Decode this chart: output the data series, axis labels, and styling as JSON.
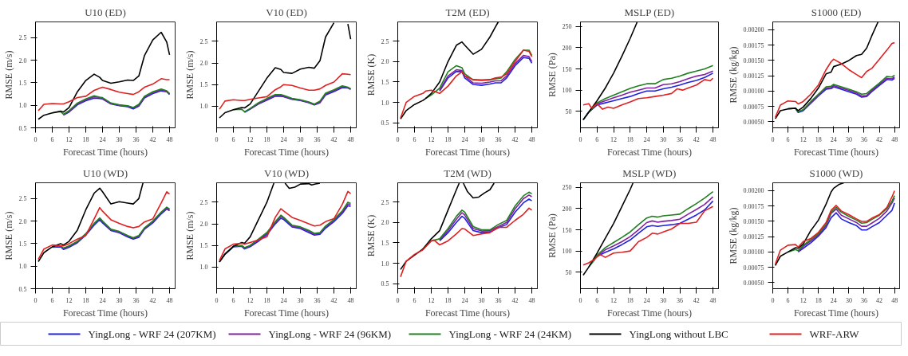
{
  "chart_data": [
    {
      "type": "line",
      "title": "U10 (ED)",
      "xlabel": "Forecast Time (hours)",
      "ylabel": "RMSE (m/s)",
      "legend": "bottom",
      "xlim": [
        0,
        50
      ],
      "ylim": [
        0.5,
        2.85
      ],
      "xticks": [
        0,
        6,
        12,
        18,
        24,
        30,
        36,
        42,
        48
      ],
      "yticks": [
        {
          "value": 0.5,
          "label": "0.5"
        },
        {
          "value": 1.0,
          "label": "1.0"
        },
        {
          "value": 1.5,
          "label": "1.5"
        },
        {
          "value": 2.0,
          "label": "2.0"
        },
        {
          "value": 2.5,
          "label": "2.5"
        }
      ],
      "x": [
        1,
        3,
        6,
        9,
        10,
        12,
        15,
        18,
        21,
        23,
        24,
        27,
        30,
        33,
        35,
        37,
        39,
        42,
        45,
        47,
        48
      ],
      "series": [
        {
          "name": "YingLong - WRF 24 (207KM)",
          "color": "#2020e0",
          "values": [
            null,
            null,
            null,
            null,
            0.78,
            0.85,
            1.01,
            1.1,
            1.16,
            1.15,
            1.14,
            1.03,
            0.99,
            0.97,
            0.92,
            0.98,
            1.16,
            1.26,
            1.32,
            1.3,
            1.24
          ]
        },
        {
          "name": "YingLong - WRF 24 (96KM)",
          "color": "#8020a0",
          "values": [
            null,
            null,
            null,
            null,
            0.79,
            0.87,
            1.03,
            1.12,
            1.19,
            1.17,
            1.15,
            1.04,
            1.0,
            0.98,
            0.94,
            1.0,
            1.18,
            1.28,
            1.34,
            1.31,
            1.25
          ]
        },
        {
          "name": "YingLong - WRF 24 (24KM)",
          "color": "#208020",
          "values": [
            null,
            null,
            0.83,
            0.86,
            0.8,
            0.88,
            1.05,
            1.14,
            1.21,
            1.18,
            1.17,
            1.05,
            1.01,
            0.99,
            0.95,
            1.02,
            1.2,
            1.3,
            1.36,
            1.32,
            1.26
          ]
        },
        {
          "name": "YingLong without LBC",
          "color": "#000000",
          "values": [
            0.69,
            0.78,
            0.83,
            0.87,
            0.85,
            0.95,
            1.3,
            1.55,
            1.69,
            1.62,
            1.55,
            1.49,
            1.52,
            1.56,
            1.55,
            1.65,
            2.1,
            2.45,
            2.62,
            2.4,
            2.12
          ]
        },
        {
          "name": "WRF-ARW",
          "color": "#e02020",
          "values": [
            0.88,
            1.02,
            1.04,
            1.03,
            1.03,
            1.08,
            1.17,
            1.2,
            1.33,
            1.38,
            1.4,
            1.35,
            1.29,
            1.26,
            1.24,
            1.3,
            1.4,
            1.47,
            1.59,
            1.57,
            1.57
          ]
        }
      ]
    },
    {
      "type": "line",
      "title": "V10 (ED)",
      "xlabel": "Forecast Time (hours)",
      "ylabel": "RMSE (m/s)",
      "xlim": [
        0,
        50
      ],
      "ylim": [
        0.5,
        2.95
      ],
      "xticks": [
        0,
        6,
        12,
        18,
        24,
        30,
        36,
        42,
        48
      ],
      "yticks": [
        {
          "value": 1.0,
          "label": "1.0"
        },
        {
          "value": 1.5,
          "label": "1.5"
        },
        {
          "value": 2.0,
          "label": "2.0"
        },
        {
          "value": 2.5,
          "label": "2.5"
        }
      ],
      "x": [
        1,
        3,
        6,
        9,
        10,
        12,
        15,
        18,
        21,
        23,
        24,
        27,
        30,
        33,
        35,
        37,
        39,
        42,
        45,
        47,
        48
      ],
      "series": [
        {
          "color": "#2020e0",
          "values": [
            null,
            null,
            null,
            null,
            0.86,
            0.93,
            1.05,
            1.14,
            1.23,
            1.23,
            1.22,
            1.16,
            1.13,
            1.08,
            1.03,
            1.08,
            1.26,
            1.34,
            1.43,
            1.42,
            1.39
          ]
        },
        {
          "color": "#8020a0",
          "values": [
            null,
            null,
            null,
            null,
            null,
            0.94,
            1.06,
            1.16,
            1.25,
            1.25,
            1.23,
            1.17,
            1.14,
            1.09,
            1.04,
            1.1,
            1.28,
            1.36,
            1.45,
            1.43,
            1.4
          ]
        },
        {
          "color": "#208020",
          "values": [
            null,
            null,
            0.92,
            0.93,
            0.87,
            0.95,
            1.08,
            1.18,
            1.27,
            1.27,
            1.25,
            1.18,
            1.15,
            1.1,
            1.05,
            1.12,
            1.3,
            1.38,
            1.47,
            1.44,
            1.4
          ]
        },
        {
          "color": "#000000",
          "values": [
            0.73,
            0.85,
            0.92,
            0.97,
            0.96,
            1.05,
            1.35,
            1.65,
            1.89,
            1.85,
            1.78,
            1.76,
            1.86,
            1.9,
            1.88,
            2.05,
            2.6,
            2.93,
            null,
            2.9,
            2.55
          ]
        },
        {
          "color": "#e02020",
          "values": [
            0.93,
            1.12,
            1.15,
            1.13,
            1.13,
            1.16,
            1.19,
            1.22,
            1.38,
            1.45,
            1.5,
            1.48,
            1.42,
            1.37,
            1.37,
            1.4,
            1.48,
            1.56,
            1.75,
            1.74,
            1.73
          ]
        }
      ]
    },
    {
      "type": "line",
      "title": "T2M (ED)",
      "xlabel": "Forecast Time (hours)",
      "ylabel": "RMSE (K)",
      "xlim": [
        0,
        50
      ],
      "ylim": [
        0.38,
        2.97
      ],
      "xticks": [
        0,
        6,
        12,
        18,
        24,
        30,
        36,
        42,
        48
      ],
      "yticks": [
        {
          "value": 0.5,
          "label": "0.5"
        },
        {
          "value": 1.0,
          "label": "1.0"
        },
        {
          "value": 1.5,
          "label": "1.5"
        },
        {
          "value": 2.0,
          "label": "2.0"
        },
        {
          "value": 2.5,
          "label": "2.5"
        }
      ],
      "x": [
        1,
        3,
        6,
        9,
        10,
        12,
        15,
        18,
        21,
        23,
        24,
        27,
        30,
        33,
        35,
        37,
        39,
        42,
        45,
        47,
        48
      ],
      "series": [
        {
          "color": "#2020e0",
          "values": [
            null,
            null,
            null,
            null,
            null,
            null,
            1.28,
            1.6,
            1.76,
            1.75,
            1.6,
            1.44,
            1.42,
            1.45,
            1.48,
            1.48,
            1.6,
            1.9,
            2.1,
            2.08,
            1.96
          ]
        },
        {
          "color": "#8020a0",
          "values": [
            null,
            null,
            null,
            null,
            null,
            null,
            1.3,
            1.65,
            1.8,
            1.78,
            1.65,
            1.48,
            1.47,
            1.5,
            1.53,
            1.53,
            1.65,
            1.95,
            2.15,
            2.12,
            2.0
          ]
        },
        {
          "color": "#208020",
          "values": [
            null,
            null,
            null,
            null,
            1.1,
            1.18,
            1.35,
            1.75,
            1.9,
            1.85,
            1.7,
            1.55,
            1.54,
            1.55,
            1.58,
            1.6,
            1.75,
            2.05,
            2.28,
            2.28,
            2.15
          ]
        },
        {
          "color": "#000000",
          "x": [
            1,
            3,
            6,
            9,
            10,
            12,
            15,
            18,
            21,
            23,
            24,
            27,
            30,
            33,
            35,
            36
          ],
          "values": [
            0.6,
            0.8,
            0.95,
            1.05,
            1.1,
            1.22,
            1.5,
            2.0,
            2.4,
            2.48,
            2.4,
            2.18,
            2.3,
            2.6,
            2.85,
            2.97
          ]
        },
        {
          "color": "#e02020",
          "values": [
            0.62,
            1.0,
            1.15,
            1.22,
            1.28,
            1.3,
            1.22,
            1.4,
            1.65,
            1.75,
            1.65,
            1.56,
            1.55,
            1.56,
            1.6,
            1.62,
            1.7,
            2.0,
            2.28,
            2.25,
            2.12
          ]
        }
      ]
    },
    {
      "type": "line",
      "title": "MSLP (ED)",
      "xlabel": "Forecast Time (hours)",
      "ylabel": "RMSE (Pa)",
      "xlim": [
        0,
        50
      ],
      "ylim": [
        11,
        261
      ],
      "xticks": [
        0,
        6,
        12,
        18,
        24,
        30,
        36,
        42,
        48
      ],
      "yticks": [
        50,
        100,
        150,
        200,
        250
      ],
      "x": [
        1,
        3,
        6,
        9,
        12,
        15,
        18,
        21,
        24,
        27,
        30,
        33,
        36,
        39,
        42,
        45,
        48
      ],
      "series": [
        {
          "color": "#2020e0",
          "values": [
            30,
            48,
            65,
            70,
            75,
            80,
            85,
            92,
            98,
            98,
            103,
            107,
            112,
            118,
            123,
            130,
            140
          ]
        },
        {
          "color": "#8020a0",
          "values": [
            30,
            48,
            68,
            75,
            82,
            88,
            95,
            100,
            105,
            105,
            113,
            115,
            120,
            127,
            133,
            137,
            145
          ]
        },
        {
          "color": "#208020",
          "values": [
            30,
            48,
            70,
            80,
            88,
            96,
            104,
            110,
            115,
            115,
            125,
            128,
            133,
            140,
            145,
            150,
            158
          ]
        },
        {
          "color": "#000000",
          "x": [
            1,
            3,
            6,
            9,
            12,
            15,
            18,
            20.5
          ],
          "values": [
            30,
            48,
            75,
            105,
            140,
            180,
            222,
            260
          ]
        },
        {
          "color": "#e02020",
          "x": [
            1,
            3,
            4,
            6,
            8,
            10,
            12,
            15,
            18,
            21,
            24,
            27,
            30,
            33,
            35,
            37,
            39,
            42,
            45,
            47,
            48
          ],
          "values": [
            65,
            68,
            58,
            68,
            55,
            60,
            57,
            65,
            72,
            80,
            82,
            85,
            88,
            92,
            103,
            100,
            105,
            112,
            125,
            122,
            128
          ]
        }
      ]
    },
    {
      "type": "line",
      "title": "S1000 (ED)",
      "xlabel": "Forecast Time (hours)",
      "ylabel": "RMSE (kg/kg)",
      "xlim": [
        0,
        50
      ],
      "ylim": [
        0.0004,
        0.00213
      ],
      "xticks": [
        0,
        6,
        12,
        18,
        24,
        30,
        36,
        42,
        48
      ],
      "yticks": [
        {
          "value": 0.0005,
          "label": "0.00050"
        },
        {
          "value": 0.00075,
          "label": "0.00075"
        },
        {
          "value": 0.001,
          "label": "0.00100"
        },
        {
          "value": 0.00125,
          "label": "0.00125"
        },
        {
          "value": 0.0015,
          "label": "0.00150"
        },
        {
          "value": 0.00175,
          "label": "0.00175"
        },
        {
          "value": 0.002,
          "label": "0.00200"
        }
      ],
      "x": [
        1,
        3,
        6,
        9,
        10,
        12,
        15,
        18,
        21,
        23,
        24,
        27,
        30,
        33,
        35,
        37,
        39,
        42,
        45,
        47,
        48
      ],
      "series": [
        {
          "color": "#2020e0",
          "values": [
            null,
            null,
            null,
            0.00071,
            0.00065,
            0.00068,
            0.0008,
            0.00092,
            0.00103,
            0.00104,
            0.00107,
            0.00103,
            0.00099,
            0.00095,
            0.0009,
            0.00091,
            0.00099,
            0.00109,
            0.00119,
            0.00118,
            0.00121
          ]
        },
        {
          "color": "#8020a0",
          "values": [
            null,
            null,
            null,
            null,
            null,
            0.00069,
            0.00081,
            0.00093,
            0.00105,
            0.00106,
            0.00109,
            0.00105,
            0.00101,
            0.00097,
            0.00092,
            0.00093,
            0.00101,
            0.00111,
            0.00121,
            0.0012,
            0.00123
          ]
        },
        {
          "color": "#208020",
          "values": [
            null,
            null,
            0.00071,
            0.00072,
            0.00066,
            0.0007,
            0.00083,
            0.00095,
            0.00107,
            0.00108,
            0.00111,
            0.00107,
            0.00103,
            0.00099,
            0.00095,
            0.00096,
            0.00103,
            0.00113,
            0.00124,
            0.00123,
            0.00126
          ]
        },
        {
          "color": "#000000",
          "x": [
            1,
            3,
            6,
            9,
            10,
            12,
            15,
            18,
            21,
            23,
            24,
            27,
            30,
            33,
            35,
            37,
            39,
            41.5
          ],
          "values": [
            0.00055,
            0.00068,
            0.00071,
            0.00072,
            0.00068,
            0.00074,
            0.00088,
            0.00105,
            0.00128,
            0.00131,
            0.0014,
            0.00144,
            0.0015,
            0.00158,
            0.0016,
            0.0017,
            0.0019,
            0.00213
          ]
        },
        {
          "color": "#e02020",
          "values": [
            0.00057,
            0.00077,
            0.00084,
            0.00083,
            0.00079,
            0.00083,
            0.00095,
            0.0011,
            0.00135,
            0.00148,
            0.00152,
            0.00145,
            0.00135,
            0.00127,
            0.00122,
            0.00132,
            0.00137,
            0.00152,
            0.00167,
            0.00178,
            0.00179
          ]
        }
      ]
    },
    {
      "type": "line",
      "title": "U10 (WD)",
      "xlabel": "Forecast Time (hours)",
      "ylabel": "RMSE (m/s)",
      "xlim": [
        0,
        50
      ],
      "ylim": [
        0.5,
        2.85
      ],
      "xticks": [
        0,
        6,
        12,
        18,
        24,
        30,
        36,
        42,
        48
      ],
      "yticks": [
        {
          "value": 0.5,
          "label": "0.5"
        },
        {
          "value": 1.0,
          "label": "1.0"
        },
        {
          "value": 1.5,
          "label": "1.5"
        },
        {
          "value": 2.0,
          "label": "2.0"
        },
        {
          "value": 2.5,
          "label": "2.5"
        }
      ],
      "x": [
        1,
        3,
        6,
        9,
        10,
        12,
        15,
        18,
        21,
        23,
        24,
        27,
        30,
        33,
        35,
        37,
        39,
        42,
        45,
        47,
        48
      ],
      "series": [
        {
          "color": "#2020e0",
          "values": [
            null,
            null,
            1.42,
            1.43,
            1.37,
            1.42,
            1.52,
            1.69,
            1.91,
            2.03,
            1.96,
            1.79,
            1.74,
            1.65,
            1.6,
            1.64,
            1.82,
            1.96,
            2.16,
            2.27,
            2.23
          ]
        },
        {
          "color": "#8020a0",
          "values": [
            null,
            null,
            null,
            1.44,
            1.39,
            1.44,
            1.54,
            1.71,
            1.94,
            2.05,
            1.99,
            1.81,
            1.76,
            1.67,
            1.62,
            1.66,
            1.84,
            1.99,
            2.18,
            2.29,
            2.25
          ]
        },
        {
          "color": "#208020",
          "values": [
            null,
            null,
            1.43,
            1.45,
            1.4,
            1.45,
            1.55,
            1.72,
            1.95,
            2.07,
            2.0,
            1.82,
            1.77,
            1.68,
            1.63,
            1.68,
            1.85,
            2.0,
            2.2,
            2.31,
            2.27
          ]
        },
        {
          "color": "#000000",
          "x": [
            1,
            3,
            6,
            9,
            10,
            12,
            15,
            18,
            21,
            23,
            24,
            27,
            30,
            33,
            35,
            37,
            38.5
          ],
          "values": [
            1.1,
            1.3,
            1.43,
            1.5,
            1.47,
            1.55,
            1.8,
            2.25,
            2.62,
            2.73,
            2.65,
            2.38,
            2.43,
            2.4,
            2.38,
            2.5,
            2.85
          ]
        },
        {
          "color": "#e02020",
          "values": [
            1.15,
            1.38,
            1.47,
            1.45,
            1.45,
            1.5,
            1.6,
            1.68,
            2.05,
            2.3,
            2.22,
            2.03,
            1.95,
            1.88,
            1.85,
            1.88,
            1.98,
            2.05,
            2.4,
            2.65,
            2.6
          ]
        }
      ]
    },
    {
      "type": "line",
      "title": "V10 (WD)",
      "xlabel": "Forecast Time (hours)",
      "ylabel": "RMSE (m/s)",
      "xlim": [
        0,
        50
      ],
      "ylim": [
        0.5,
        2.95
      ],
      "xticks": [
        0,
        6,
        12,
        18,
        24,
        30,
        36,
        42,
        48
      ],
      "yticks": [
        {
          "value": 1.0,
          "label": "1.0"
        },
        {
          "value": 1.5,
          "label": "1.5"
        },
        {
          "value": 2.0,
          "label": "2.0"
        },
        {
          "value": 2.5,
          "label": "2.5"
        }
      ],
      "x": [
        1,
        3,
        6,
        9,
        10,
        12,
        15,
        18,
        21,
        23,
        24,
        27,
        30,
        33,
        35,
        37,
        39,
        42,
        45,
        47,
        48
      ],
      "series": [
        {
          "color": "#2020e0",
          "values": [
            1.12,
            1.3,
            1.47,
            1.48,
            1.42,
            1.47,
            1.6,
            1.75,
            2.0,
            2.13,
            2.1,
            1.93,
            1.89,
            1.8,
            1.74,
            1.76,
            1.9,
            2.05,
            2.24,
            2.42,
            2.4
          ]
        },
        {
          "color": "#8020a0",
          "values": [
            1.12,
            1.3,
            1.48,
            1.49,
            1.44,
            1.49,
            1.63,
            1.78,
            2.03,
            2.17,
            2.13,
            1.95,
            1.91,
            1.83,
            1.76,
            1.78,
            1.93,
            2.08,
            2.27,
            2.46,
            2.44
          ]
        },
        {
          "color": "#208020",
          "values": [
            1.12,
            1.3,
            1.48,
            1.5,
            1.45,
            1.5,
            1.65,
            1.8,
            2.05,
            2.2,
            2.15,
            1.97,
            1.93,
            1.85,
            1.78,
            1.8,
            1.95,
            2.1,
            2.3,
            2.5,
            2.47
          ]
        },
        {
          "color": "#000000",
          "x": [
            1,
            3,
            6,
            9,
            10,
            12,
            15,
            18,
            20.5,
            22,
            24.5,
            26,
            28,
            30,
            33,
            34,
            36,
            37
          ],
          "values": [
            1.12,
            1.3,
            1.48,
            1.57,
            1.55,
            1.7,
            2.1,
            2.5,
            2.94,
            null,
            2.94,
            2.82,
            2.85,
            2.92,
            2.93,
            2.9,
            2.93,
            2.94
          ]
        },
        {
          "color": "#e02020",
          "values": [
            1.15,
            1.42,
            1.53,
            1.55,
            1.53,
            1.57,
            1.63,
            1.7,
            2.15,
            2.35,
            2.3,
            2.15,
            2.08,
            2.0,
            1.95,
            1.97,
            2.05,
            2.12,
            2.45,
            2.75,
            2.7
          ]
        }
      ]
    },
    {
      "type": "line",
      "title": "T2M (WD)",
      "xlabel": "Forecast Time (hours)",
      "ylabel": "RMSE (K)",
      "xlim": [
        0,
        50
      ],
      "ylim": [
        0.38,
        2.97
      ],
      "xticks": [
        0,
        6,
        12,
        18,
        24,
        30,
        36,
        42,
        48
      ],
      "yticks": [
        {
          "value": 0.5,
          "label": "0.5"
        },
        {
          "value": 1.0,
          "label": "1.0"
        },
        {
          "value": 1.5,
          "label": "1.5"
        },
        {
          "value": 2.0,
          "label": "2.0"
        },
        {
          "value": 2.5,
          "label": "2.5"
        }
      ],
      "x": [
        9,
        12,
        15,
        18,
        21,
        23,
        24,
        27,
        30,
        33,
        36,
        39,
        42,
        45,
        47,
        48
      ],
      "series": [
        {
          "color": "#2020e0",
          "values": [
            null,
            null,
            1.55,
            1.75,
            2.0,
            2.15,
            2.1,
            1.8,
            1.75,
            1.77,
            1.87,
            1.95,
            2.25,
            2.48,
            2.57,
            2.53
          ]
        },
        {
          "color": "#8020a0",
          "values": [
            null,
            null,
            1.58,
            1.8,
            2.08,
            2.24,
            2.18,
            1.85,
            1.79,
            1.8,
            1.9,
            2.0,
            2.33,
            2.58,
            2.67,
            2.63
          ]
        },
        {
          "color": "#208020",
          "values": [
            1.35,
            1.55,
            1.6,
            1.85,
            2.15,
            2.3,
            2.25,
            1.9,
            1.82,
            1.82,
            1.95,
            2.05,
            2.4,
            2.65,
            2.74,
            2.7
          ]
        },
        {
          "color": "#000000",
          "x": [
            1,
            3,
            6,
            9,
            12,
            15,
            18,
            21,
            22,
            22.8,
            23.5,
            25,
            27,
            29,
            31,
            33,
            34.5
          ],
          "values": [
            0.85,
            1.05,
            1.2,
            1.35,
            1.6,
            1.8,
            2.3,
            2.8,
            2.96,
            null,
            2.96,
            2.75,
            2.6,
            2.62,
            2.72,
            2.8,
            2.96
          ]
        },
        {
          "color": "#e02020",
          "x": [
            1,
            3,
            6,
            9,
            12,
            13,
            15,
            18,
            21,
            23,
            24,
            27,
            30,
            33,
            36,
            39,
            42,
            45,
            47,
            48
          ],
          "values": [
            0.67,
            1.05,
            1.22,
            1.33,
            1.55,
            1.57,
            1.45,
            1.55,
            1.72,
            1.85,
            1.84,
            1.68,
            1.72,
            1.75,
            1.88,
            1.88,
            2.05,
            2.2,
            2.35,
            2.3
          ]
        }
      ]
    },
    {
      "type": "line",
      "title": "MSLP (WD)",
      "xlabel": "Forecast Time (hours)",
      "ylabel": "RMSE (Pa)",
      "xlim": [
        0,
        50
      ],
      "ylim": [
        11,
        261
      ],
      "xticks": [
        0,
        6,
        12,
        18,
        24,
        30,
        36,
        42,
        48
      ],
      "yticks": [
        50,
        100,
        150,
        200,
        250
      ],
      "x": [
        3,
        5,
        6,
        9,
        12,
        15,
        18,
        21,
        24,
        26,
        28,
        30,
        33,
        36,
        39,
        42,
        45,
        48
      ],
      "series": [
        {
          "color": "#2020e0",
          "values": [
            null,
            null,
            87,
            97,
            105,
            115,
            126,
            142,
            157,
            160,
            158,
            160,
            162,
            165,
            175,
            185,
            197,
            218
          ]
        },
        {
          "color": "#8020a0",
          "values": [
            null,
            null,
            88,
            103,
            112,
            122,
            134,
            150,
            167,
            171,
            168,
            170,
            172,
            175,
            187,
            198,
            210,
            228
          ]
        },
        {
          "color": "#208020",
          "values": [
            62,
            78,
            90,
            108,
            120,
            132,
            145,
            162,
            178,
            182,
            180,
            183,
            185,
            187,
            200,
            212,
            225,
            240
          ]
        },
        {
          "color": "#000000",
          "x": [
            1,
            3,
            6,
            9,
            12,
            15,
            18,
            19
          ],
          "values": [
            43,
            62,
            95,
            130,
            165,
            205,
            245,
            260
          ]
        },
        {
          "color": "#e02020",
          "x": [
            1,
            3,
            5,
            7,
            9,
            12,
            15,
            18,
            21,
            24,
            26,
            28,
            30,
            33,
            36,
            39,
            42,
            45,
            48
          ],
          "values": [
            67,
            72,
            80,
            92,
            85,
            95,
            97,
            100,
            122,
            132,
            142,
            140,
            145,
            152,
            165,
            165,
            168,
            195,
            205
          ]
        }
      ]
    },
    {
      "type": "line",
      "title": "S1000 (WD)",
      "xlabel": "Forecast Time (hours)",
      "ylabel": "RMSE (kg/kg)",
      "xlim": [
        0,
        50
      ],
      "ylim": [
        0.0004,
        0.00213
      ],
      "xticks": [
        0,
        6,
        12,
        18,
        24,
        30,
        36,
        42,
        48
      ],
      "yticks": [
        {
          "value": 0.0005,
          "label": "0.00050"
        },
        {
          "value": 0.00075,
          "label": "0.00075"
        },
        {
          "value": 0.001,
          "label": "0.00100"
        },
        {
          "value": 0.00125,
          "label": "0.00125"
        },
        {
          "value": 0.0015,
          "label": "0.00150"
        },
        {
          "value": 0.00175,
          "label": "0.00175"
        },
        {
          "value": 0.002,
          "label": "0.00200"
        }
      ],
      "x": [
        1,
        3,
        6,
        9,
        10,
        12,
        15,
        18,
        21,
        23,
        25,
        27,
        30,
        33,
        35,
        37,
        39,
        42,
        45,
        47,
        48
      ],
      "series": [
        {
          "color": "#2020e0",
          "values": [
            null,
            null,
            null,
            null,
            0.001,
            0.00106,
            0.00115,
            0.00126,
            0.0014,
            0.00156,
            0.00164,
            0.00154,
            0.00148,
            0.00143,
            0.00136,
            0.00136,
            0.00141,
            0.00148,
            0.0016,
            0.00168,
            0.0018
          ]
        },
        {
          "color": "#8020a0",
          "values": [
            null,
            null,
            null,
            null,
            0.00101,
            0.00109,
            0.00118,
            0.00128,
            0.00143,
            0.00163,
            0.0017,
            0.0016,
            0.00154,
            0.00148,
            0.00142,
            0.00142,
            0.00147,
            0.00155,
            0.00167,
            0.0018,
            0.00188
          ]
        },
        {
          "color": "#208020",
          "values": [
            null,
            null,
            0.001,
            0.00104,
            0.00102,
            0.00111,
            0.0012,
            0.0013,
            0.00145,
            0.00165,
            0.00173,
            0.00165,
            0.00158,
            0.00152,
            0.00147,
            0.00148,
            0.00153,
            0.0016,
            0.00171,
            0.00183,
            0.00192
          ]
        },
        {
          "color": "#000000",
          "x": [
            1,
            3,
            6,
            9,
            10,
            12,
            15,
            18,
            21,
            23,
            24,
            26,
            28
          ],
          "values": [
            0.00078,
            0.00093,
            0.001,
            0.00107,
            0.00106,
            0.00113,
            0.00135,
            0.00152,
            0.00178,
            0.00198,
            0.00204,
            0.0021,
            0.00213
          ]
        },
        {
          "color": "#e02020",
          "values": [
            0.0008,
            0.00103,
            0.00111,
            0.00112,
            0.00108,
            0.00117,
            0.00122,
            0.00132,
            0.00148,
            0.00168,
            0.00176,
            0.00167,
            0.00161,
            0.00154,
            0.0015,
            0.0015,
            0.00155,
            0.00161,
            0.00173,
            0.0019,
            0.002
          ]
        }
      ]
    }
  ]
}
